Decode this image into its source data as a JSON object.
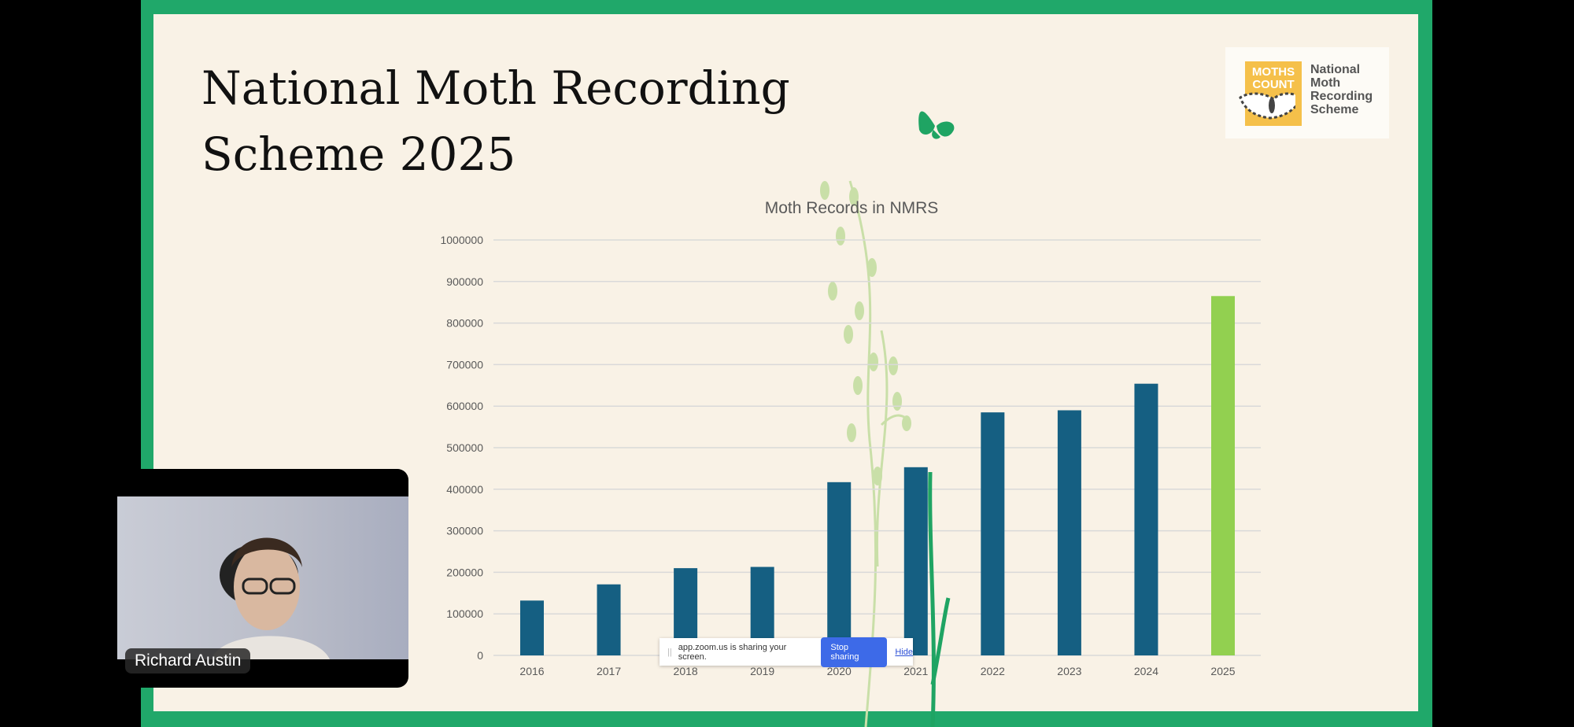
{
  "slide": {
    "title_line1": "National Moth Recording",
    "title_line2": "Scheme 2025",
    "logo": {
      "badge": "MOTHS COUNT",
      "text_lines": [
        "National",
        "Moth",
        "Recording",
        "Scheme"
      ]
    }
  },
  "chart_data": {
    "type": "bar",
    "title": "Moth Records in NMRS",
    "categories": [
      "2016",
      "2017",
      "2018",
      "2019",
      "2020",
      "2021",
      "2022",
      "2023",
      "2024",
      "2025"
    ],
    "values": [
      132000,
      171000,
      210000,
      213000,
      417000,
      453000,
      585000,
      590000,
      654000,
      865000
    ],
    "ylim": [
      0,
      1000000
    ],
    "yticks": [
      0,
      100000,
      200000,
      300000,
      400000,
      500000,
      600000,
      700000,
      800000,
      900000,
      1000000
    ],
    "grid": true,
    "colors": {
      "default": "#155f82",
      "highlight": "#92d050"
    },
    "highlight_category": "2025"
  },
  "screen_share_bar": {
    "message": "app.zoom.us is sharing your screen.",
    "stop_label": "Stop sharing",
    "hide_label": "Hide"
  },
  "video": {
    "participant_name": "Richard Austin"
  }
}
